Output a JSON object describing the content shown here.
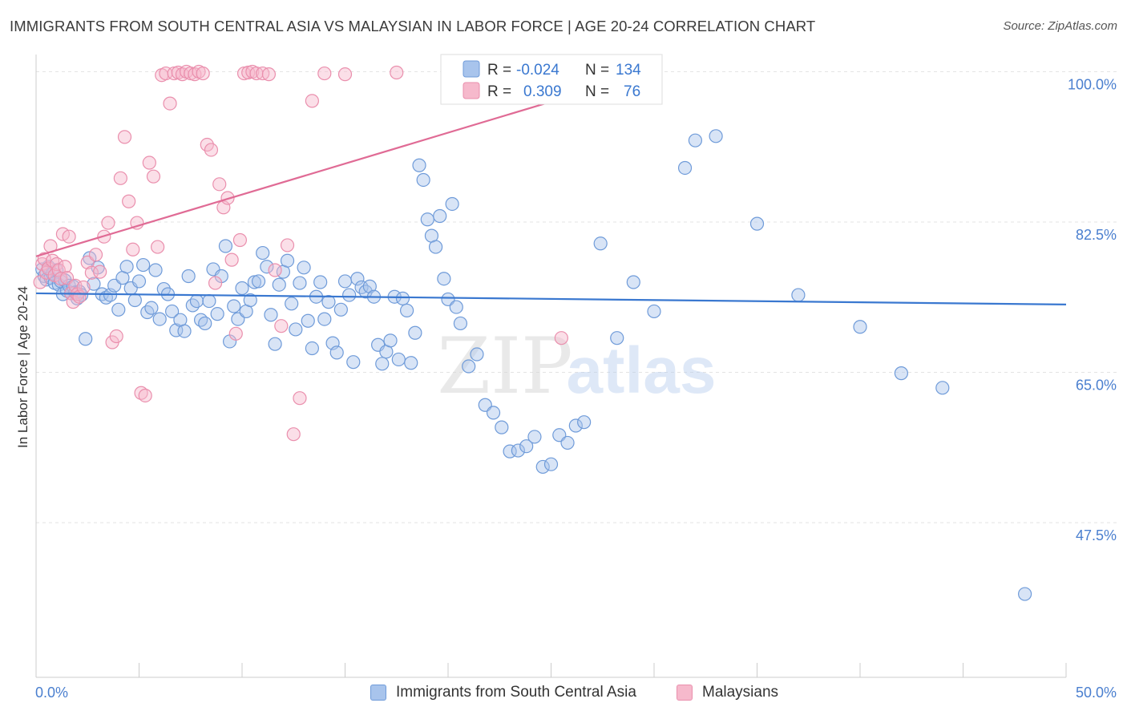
{
  "title": "IMMIGRANTS FROM SOUTH CENTRAL ASIA VS MALAYSIAN IN LABOR FORCE | AGE 20-24 CORRELATION CHART",
  "source": "Source: ZipAtlas.com",
  "watermark": {
    "part1": "ZIP",
    "part2": "atlas"
  },
  "colors": {
    "blue_fill": "#a8c4ec",
    "blue_stroke": "#6f9bd9",
    "blue_line": "#3a78d0",
    "pink_fill": "#f6b9cc",
    "pink_stroke": "#ea8fad",
    "pink_line": "#e06b95",
    "axis_text": "#4a7fcf",
    "grid": "#e3e3e3"
  },
  "legend_box": {
    "rows": [
      {
        "r_label": "R =",
        "r_value": "-0.024",
        "n_label": "N =",
        "n_value": "134"
      },
      {
        "r_label": "R =",
        "r_value": "0.309",
        "n_label": "N =",
        "n_value": "76"
      }
    ]
  },
  "chart_data": {
    "type": "scatter",
    "title": "IMMIGRANTS FROM SOUTH CENTRAL ASIA VS MALAYSIAN IN LABOR FORCE | AGE 20-24 CORRELATION CHART",
    "xlabel": "",
    "ylabel": "In Labor Force | Age 20-24",
    "xlim": [
      0,
      50
    ],
    "ylim": [
      29.5,
      102
    ],
    "x_tick_labels": [
      "0.0%",
      "50.0%"
    ],
    "y_ticks": [
      47.5,
      65.0,
      82.5,
      100.0
    ],
    "y_tick_labels": [
      "47.5%",
      "65.0%",
      "82.5%",
      "100.0%"
    ],
    "grid": true,
    "legend_position": "bottom",
    "series": [
      {
        "name": "Immigrants from South Central Asia",
        "color": "#a8c4ec",
        "r": -0.024,
        "n": 134,
        "trend": [
          [
            0,
            74.2
          ],
          [
            50,
            72.9
          ]
        ],
        "points": [
          [
            0.3,
            77.0
          ],
          [
            0.4,
            76.2
          ],
          [
            0.5,
            75.8
          ],
          [
            0.6,
            77.3
          ],
          [
            0.7,
            76.0
          ],
          [
            0.8,
            76.5
          ],
          [
            0.9,
            75.4
          ],
          [
            1.0,
            76.9
          ],
          [
            1.1,
            75.2
          ],
          [
            1.2,
            75.6
          ],
          [
            1.3,
            74.1
          ],
          [
            1.4,
            75.7
          ],
          [
            1.5,
            74.5
          ],
          [
            1.6,
            75.1
          ],
          [
            1.7,
            74.2
          ],
          [
            1.8,
            75.0
          ],
          [
            1.9,
            74.3
          ],
          [
            2.0,
            73.6
          ],
          [
            2.1,
            74.4
          ],
          [
            2.2,
            74.0
          ],
          [
            2.4,
            68.9
          ],
          [
            2.6,
            78.3
          ],
          [
            2.8,
            75.3
          ],
          [
            3.0,
            77.2
          ],
          [
            3.2,
            74.1
          ],
          [
            3.4,
            73.7
          ],
          [
            3.6,
            74.0
          ],
          [
            3.8,
            75.1
          ],
          [
            4.0,
            72.3
          ],
          [
            4.2,
            76.0
          ],
          [
            4.4,
            77.3
          ],
          [
            4.6,
            74.8
          ],
          [
            4.8,
            73.4
          ],
          [
            5.0,
            75.6
          ],
          [
            5.2,
            77.5
          ],
          [
            5.4,
            72.0
          ],
          [
            5.6,
            72.5
          ],
          [
            5.8,
            76.9
          ],
          [
            6.0,
            71.2
          ],
          [
            6.2,
            74.7
          ],
          [
            6.4,
            74.1
          ],
          [
            6.6,
            72.1
          ],
          [
            6.8,
            69.9
          ],
          [
            7.0,
            71.1
          ],
          [
            7.2,
            69.8
          ],
          [
            7.4,
            76.2
          ],
          [
            7.6,
            72.8
          ],
          [
            7.8,
            73.3
          ],
          [
            8.0,
            71.1
          ],
          [
            8.2,
            70.7
          ],
          [
            8.4,
            73.3
          ],
          [
            8.6,
            77.0
          ],
          [
            8.8,
            71.8
          ],
          [
            9.0,
            76.2
          ],
          [
            9.2,
            79.7
          ],
          [
            9.4,
            68.6
          ],
          [
            9.6,
            72.7
          ],
          [
            9.8,
            71.2
          ],
          [
            10.0,
            74.8
          ],
          [
            10.2,
            72.1
          ],
          [
            10.4,
            73.4
          ],
          [
            10.6,
            75.5
          ],
          [
            10.8,
            75.6
          ],
          [
            11.0,
            78.9
          ],
          [
            11.2,
            77.3
          ],
          [
            11.4,
            71.7
          ],
          [
            11.6,
            68.3
          ],
          [
            11.8,
            75.2
          ],
          [
            12.0,
            76.7
          ],
          [
            12.2,
            78.0
          ],
          [
            12.4,
            73.0
          ],
          [
            12.6,
            70.0
          ],
          [
            12.8,
            75.4
          ],
          [
            13.0,
            77.2
          ],
          [
            13.2,
            71.0
          ],
          [
            13.4,
            67.8
          ],
          [
            13.6,
            73.8
          ],
          [
            13.8,
            75.5
          ],
          [
            14.0,
            71.2
          ],
          [
            14.2,
            73.2
          ],
          [
            14.4,
            68.4
          ],
          [
            14.6,
            67.3
          ],
          [
            14.8,
            72.3
          ],
          [
            15.0,
            75.6
          ],
          [
            15.2,
            74.0
          ],
          [
            15.4,
            66.2
          ],
          [
            15.6,
            75.9
          ],
          [
            15.8,
            74.9
          ],
          [
            16.0,
            74.4
          ],
          [
            16.2,
            75.0
          ],
          [
            16.4,
            73.8
          ],
          [
            16.6,
            68.2
          ],
          [
            16.8,
            66.0
          ],
          [
            17.0,
            67.4
          ],
          [
            17.2,
            68.7
          ],
          [
            17.4,
            73.8
          ],
          [
            17.6,
            66.5
          ],
          [
            17.8,
            73.6
          ],
          [
            18.0,
            72.2
          ],
          [
            18.2,
            66.1
          ],
          [
            18.4,
            69.6
          ],
          [
            18.6,
            89.1
          ],
          [
            18.8,
            87.4
          ],
          [
            19.0,
            82.8
          ],
          [
            19.2,
            80.9
          ],
          [
            19.4,
            79.6
          ],
          [
            19.6,
            83.2
          ],
          [
            19.8,
            75.9
          ],
          [
            20.0,
            73.5
          ],
          [
            20.2,
            84.6
          ],
          [
            20.4,
            72.6
          ],
          [
            20.6,
            70.7
          ],
          [
            21.0,
            65.7
          ],
          [
            21.4,
            67.1
          ],
          [
            21.8,
            61.2
          ],
          [
            22.2,
            60.3
          ],
          [
            22.6,
            58.6
          ],
          [
            23.0,
            55.8
          ],
          [
            23.4,
            55.9
          ],
          [
            23.8,
            56.4
          ],
          [
            24.2,
            57.5
          ],
          [
            24.6,
            54.0
          ],
          [
            25.0,
            54.3
          ],
          [
            25.4,
            57.7
          ],
          [
            25.8,
            56.8
          ],
          [
            26.2,
            58.8
          ],
          [
            26.6,
            59.2
          ],
          [
            27.4,
            80.0
          ],
          [
            28.2,
            69.0
          ],
          [
            29.0,
            75.5
          ],
          [
            31.5,
            88.8
          ],
          [
            32.0,
            92.0
          ],
          [
            33.0,
            92.5
          ],
          [
            35.0,
            82.3
          ],
          [
            37.0,
            74.0
          ],
          [
            40.0,
            70.3
          ],
          [
            42.0,
            64.9
          ],
          [
            44.0,
            63.2
          ],
          [
            48.0,
            39.2
          ],
          [
            30.0,
            72.1
          ]
        ]
      },
      {
        "name": "Malaysians",
        "color": "#f6b9cc",
        "r": 0.309,
        "n": 76,
        "trend": [
          [
            0,
            78.5
          ],
          [
            25,
            96.5
          ]
        ],
        "points": [
          [
            0.2,
            75.5
          ],
          [
            0.3,
            77.6
          ],
          [
            0.4,
            78.2
          ],
          [
            0.5,
            76.6
          ],
          [
            0.6,
            77.1
          ],
          [
            0.7,
            79.7
          ],
          [
            0.8,
            78.0
          ],
          [
            0.9,
            76.3
          ],
          [
            1.0,
            77.6
          ],
          [
            1.1,
            76.9
          ],
          [
            1.2,
            75.9
          ],
          [
            1.3,
            81.1
          ],
          [
            1.4,
            77.3
          ],
          [
            1.5,
            76.0
          ],
          [
            1.6,
            80.8
          ],
          [
            1.7,
            74.2
          ],
          [
            1.8,
            73.2
          ],
          [
            1.9,
            75.1
          ],
          [
            2.0,
            74.1
          ],
          [
            2.1,
            73.8
          ],
          [
            2.3,
            74.9
          ],
          [
            2.5,
            77.8
          ],
          [
            2.7,
            76.6
          ],
          [
            2.9,
            78.7
          ],
          [
            3.1,
            76.7
          ],
          [
            3.3,
            80.8
          ],
          [
            3.5,
            82.4
          ],
          [
            3.7,
            68.5
          ],
          [
            3.9,
            69.2
          ],
          [
            4.1,
            87.6
          ],
          [
            4.3,
            92.4
          ],
          [
            4.5,
            84.9
          ],
          [
            4.7,
            79.3
          ],
          [
            4.9,
            82.4
          ],
          [
            5.1,
            62.6
          ],
          [
            5.3,
            62.3
          ],
          [
            5.5,
            89.4
          ],
          [
            5.7,
            87.8
          ],
          [
            5.9,
            79.6
          ],
          [
            6.1,
            99.6
          ],
          [
            6.3,
            99.8
          ],
          [
            6.5,
            96.3
          ],
          [
            6.7,
            99.8
          ],
          [
            6.9,
            99.9
          ],
          [
            7.1,
            99.7
          ],
          [
            7.3,
            100.0
          ],
          [
            7.5,
            99.8
          ],
          [
            7.7,
            99.7
          ],
          [
            7.9,
            100.0
          ],
          [
            8.1,
            99.8
          ],
          [
            8.3,
            91.5
          ],
          [
            8.5,
            90.9
          ],
          [
            8.7,
            75.4
          ],
          [
            8.9,
            86.9
          ],
          [
            9.1,
            84.2
          ],
          [
            9.3,
            85.3
          ],
          [
            9.5,
            78.1
          ],
          [
            9.7,
            69.5
          ],
          [
            9.9,
            80.4
          ],
          [
            10.1,
            99.8
          ],
          [
            10.3,
            99.9
          ],
          [
            10.5,
            100.0
          ],
          [
            10.7,
            99.8
          ],
          [
            11.0,
            99.8
          ],
          [
            11.3,
            99.7
          ],
          [
            11.6,
            76.9
          ],
          [
            11.9,
            70.4
          ],
          [
            12.2,
            79.8
          ],
          [
            12.5,
            57.8
          ],
          [
            12.8,
            62.0
          ],
          [
            13.4,
            96.6
          ],
          [
            14.0,
            99.8
          ],
          [
            15.0,
            99.7
          ],
          [
            17.5,
            99.9
          ],
          [
            24.0,
            100.0
          ],
          [
            25.5,
            69.0
          ]
        ]
      }
    ]
  }
}
